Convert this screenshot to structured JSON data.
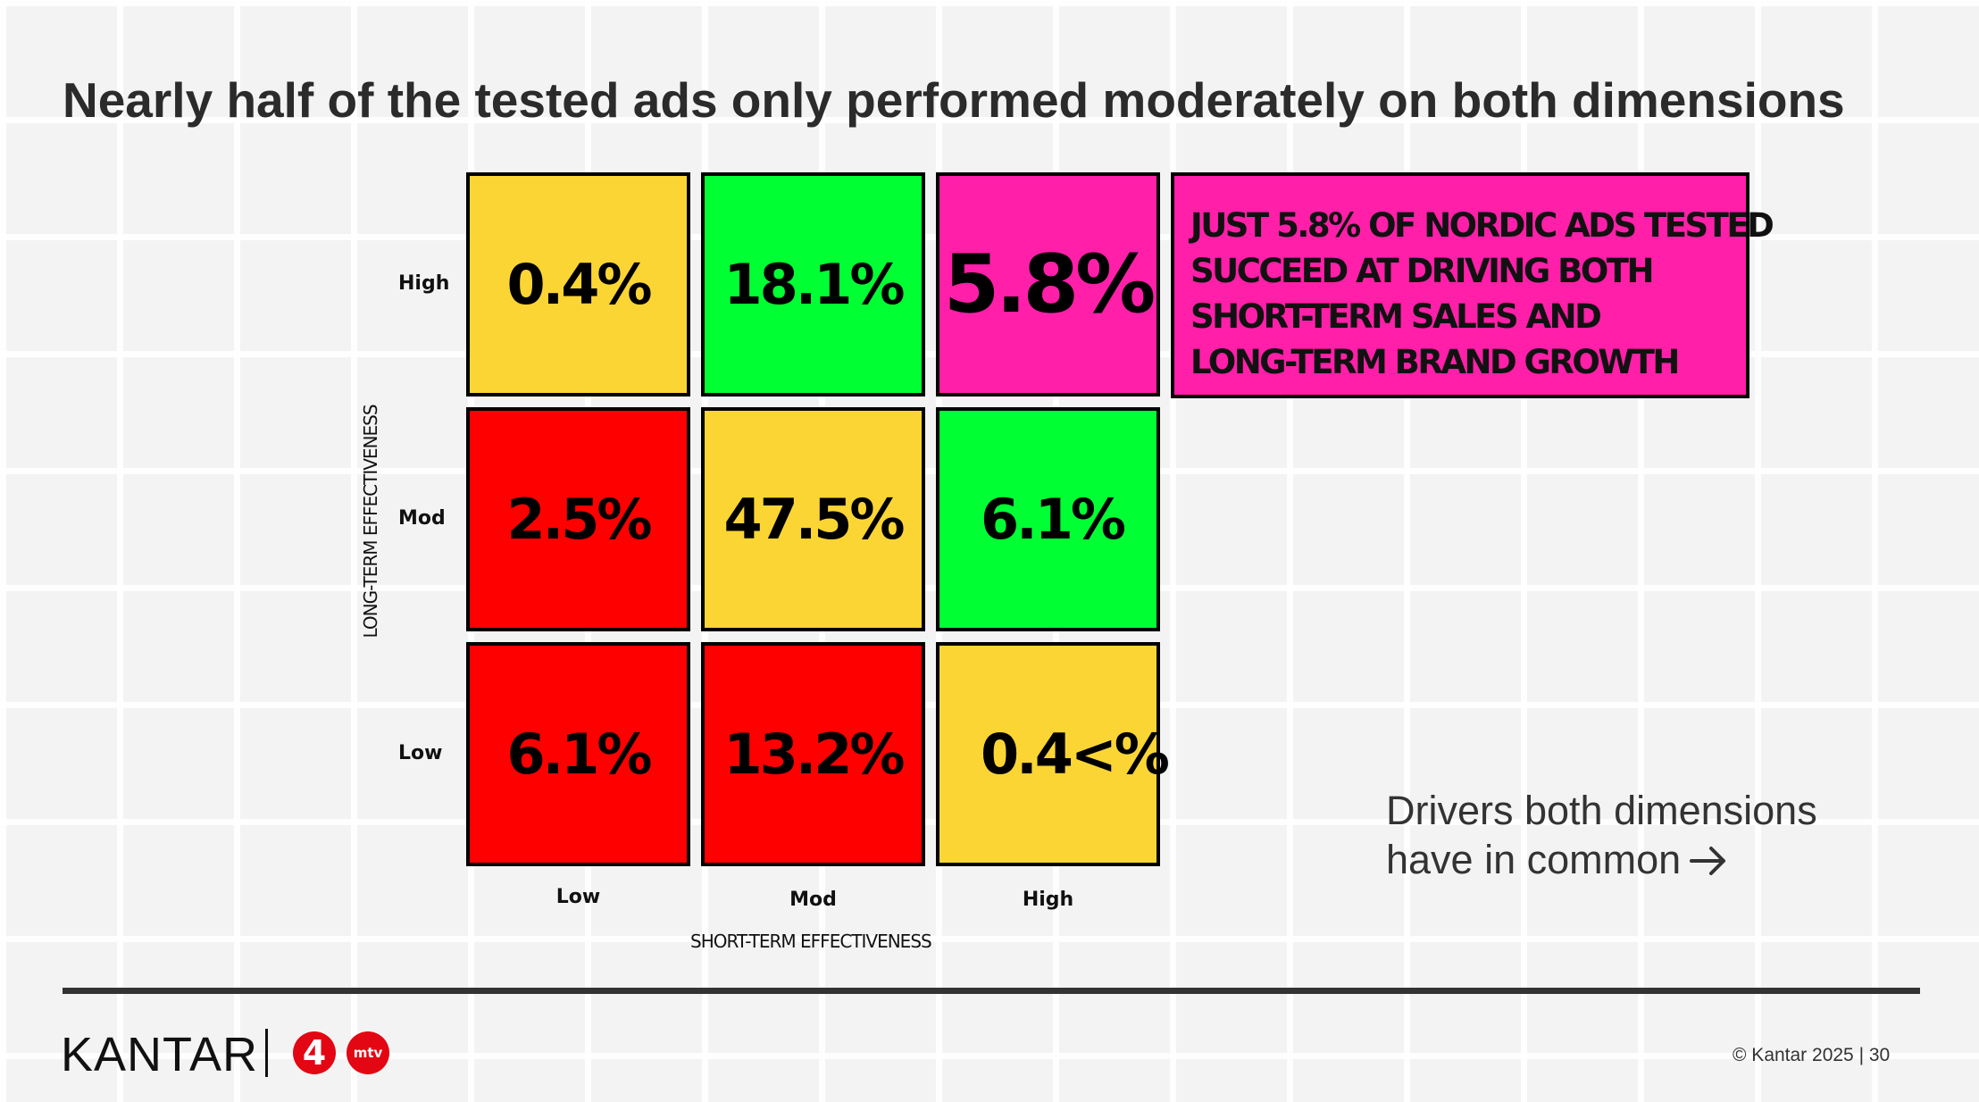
{
  "title": "Nearly half of the tested ads only performed moderately on both dimensions",
  "chart_data": {
    "type": "heatmap",
    "xlabel": "SHORT-TERM EFFECTIVENESS",
    "ylabel": "LONG-TERM EFFECTIVENESS",
    "x_categories": [
      "Low",
      "Mod",
      "High"
    ],
    "y_categories": [
      "High",
      "Mod",
      "Low"
    ],
    "cells": [
      {
        "row": "High",
        "col": "Low",
        "label": "0.4%",
        "value": 0.4,
        "color": "#fbd534"
      },
      {
        "row": "High",
        "col": "Mod",
        "label": "18.1%",
        "value": 18.1,
        "color": "#00ff33"
      },
      {
        "row": "High",
        "col": "High",
        "label": "5.8%",
        "value": 5.8,
        "color": "#ff1fa8"
      },
      {
        "row": "Mod",
        "col": "Low",
        "label": "2.5%",
        "value": 2.5,
        "color": "#ff0000"
      },
      {
        "row": "Mod",
        "col": "Mod",
        "label": "47.5%",
        "value": 47.5,
        "color": "#fbd534"
      },
      {
        "row": "Mod",
        "col": "High",
        "label": "6.1%",
        "value": 6.1,
        "color": "#00ff33"
      },
      {
        "row": "Low",
        "col": "Low",
        "label": "6.1%",
        "value": 6.1,
        "color": "#ff0000"
      },
      {
        "row": "Low",
        "col": "Mod",
        "label": "13.2%",
        "value": 13.2,
        "color": "#ff0000"
      },
      {
        "row": "Low",
        "col": "High",
        "label": "0.4<%",
        "value": 0.4,
        "color": "#fbd534"
      }
    ]
  },
  "callout": {
    "lines": [
      "JUST 5.8% OF NORDIC ADS TESTED",
      "SUCCEED AT DRIVING BOTH",
      "SHORT-TERM SALES AND",
      "LONG-TERM BRAND GROWTH"
    ],
    "color": "#ff1fa8"
  },
  "drivers": {
    "line1": "Drivers both dimensions",
    "line2": "have in common",
    "icon": "arrow-right-icon"
  },
  "footer": {
    "logo": "KANTAR",
    "partner_badge_1": "4",
    "partner_badge_2": "mtv",
    "copyright": "© Kantar 2025 | 30",
    "page_number_overlap": "30"
  }
}
